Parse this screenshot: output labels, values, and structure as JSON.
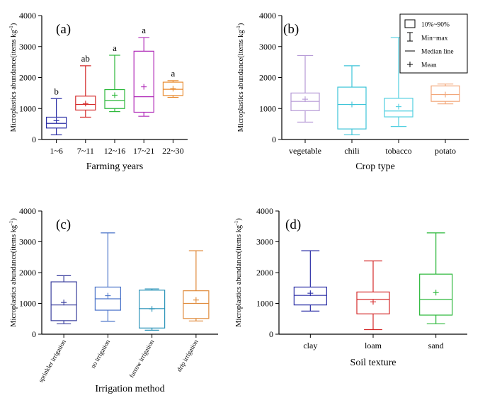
{
  "chart_data": [
    {
      "type": "box",
      "panel_label": "(a)",
      "title": "",
      "xlabel": "Farming years",
      "ylabel": "Microplastics abundance(items kg",
      "ylabel_sup": "-1",
      "ylabel_close": ")",
      "ylim": [
        0,
        4000
      ],
      "yticks": [
        "0",
        "1000",
        "2000",
        "3000",
        "4000"
      ],
      "categories": [
        "1~6",
        "7~11",
        "12~16",
        "17~21",
        "22~30"
      ],
      "colors": [
        "#2b2fa6",
        "#d42a2a",
        "#2bb83a",
        "#b02ab8",
        "#e88a2e"
      ],
      "boxes": [
        {
          "min": 150,
          "q1": 370,
          "median": 520,
          "q3": 720,
          "max": 1320,
          "mean": 610
        },
        {
          "min": 720,
          "q1": 950,
          "median": 1130,
          "q3": 1400,
          "max": 2380,
          "mean": 1160
        },
        {
          "min": 900,
          "q1": 1000,
          "median": 1260,
          "q3": 1610,
          "max": 2720,
          "mean": 1430
        },
        {
          "min": 750,
          "q1": 880,
          "median": 1380,
          "q3": 2850,
          "max": 3290,
          "mean": 1700
        },
        {
          "min": 1360,
          "q1": 1420,
          "median": 1620,
          "q3": 1850,
          "max": 1900,
          "mean": 1640
        }
      ],
      "significance": [
        "b",
        "ab",
        "a",
        "a",
        "a"
      ]
    },
    {
      "type": "box",
      "panel_label": "(b)",
      "title": "",
      "xlabel": "Crop type",
      "ylabel": "Microplastics abundance(items kg",
      "ylabel_sup": "-1",
      "ylabel_close": ")",
      "ylim": [
        0,
        4000
      ],
      "yticks": [
        "0",
        "1000",
        "2000",
        "3000",
        "4000"
      ],
      "categories": [
        "vegetable",
        "chili",
        "tobacco",
        "potato"
      ],
      "colors": [
        "#b69ad6",
        "#3dc4d8",
        "#4fcfe0",
        "#f2a77a"
      ],
      "boxes": [
        {
          "min": 560,
          "q1": 930,
          "median": 1230,
          "q3": 1500,
          "max": 2710,
          "mean": 1300
        },
        {
          "min": 150,
          "q1": 340,
          "median": 1130,
          "q3": 1690,
          "max": 2380,
          "mean": 1130
        },
        {
          "min": 420,
          "q1": 730,
          "median": 920,
          "q3": 1330,
          "max": 3290,
          "mean": 1060
        },
        {
          "min": 1150,
          "q1": 1230,
          "median": 1450,
          "q3": 1730,
          "max": 1790,
          "mean": 1450
        }
      ],
      "legend": {
        "placement": "top-right",
        "items": [
          "10%~90%",
          "Min~max",
          "Median line",
          "Mean"
        ]
      }
    },
    {
      "type": "box",
      "panel_label": "(c)",
      "title": "",
      "xlabel": "Irrigation method",
      "ylabel": "Microplastics abundance(items kg",
      "ylabel_sup": "-1",
      "ylabel_close": ")",
      "ylim": [
        0,
        4000
      ],
      "yticks": [
        "0",
        "1000",
        "2000",
        "3000",
        "4000"
      ],
      "categories": [
        "sprinkler irrigation",
        "no irrigation",
        "furrow irrigation",
        "drip irrigation"
      ],
      "colors": [
        "#3a3f9e",
        "#4a73c9",
        "#2a93b8",
        "#e08a3a"
      ],
      "boxes": [
        {
          "min": 340,
          "q1": 440,
          "median": 950,
          "q3": 1700,
          "max": 1900,
          "mean": 1030
        },
        {
          "min": 420,
          "q1": 780,
          "median": 1150,
          "q3": 1530,
          "max": 3290,
          "mean": 1250
        },
        {
          "min": 130,
          "q1": 200,
          "median": 830,
          "q3": 1430,
          "max": 1470,
          "mean": 820
        },
        {
          "min": 430,
          "q1": 510,
          "median": 1000,
          "q3": 1410,
          "max": 2710,
          "mean": 1110
        }
      ]
    },
    {
      "type": "box",
      "panel_label": "(d)",
      "title": "",
      "xlabel": "Soil texture",
      "ylabel": "Microplastics abundance(items kg",
      "ylabel_sup": "-1",
      "ylabel_close": ")",
      "ylim": [
        0,
        4000
      ],
      "yticks": [
        "0",
        "1000",
        "2000",
        "3000",
        "4000"
      ],
      "categories": [
        "clay",
        "loam",
        "sand"
      ],
      "colors": [
        "#2b2fa6",
        "#d42a2a",
        "#2bb83a"
      ],
      "boxes": [
        {
          "min": 750,
          "q1": 950,
          "median": 1260,
          "q3": 1530,
          "max": 2710,
          "mean": 1330
        },
        {
          "min": 150,
          "q1": 660,
          "median": 1130,
          "q3": 1370,
          "max": 2380,
          "mean": 1050
        },
        {
          "min": 340,
          "q1": 620,
          "median": 1130,
          "q3": 1950,
          "max": 3290,
          "mean": 1350
        }
      ]
    }
  ]
}
